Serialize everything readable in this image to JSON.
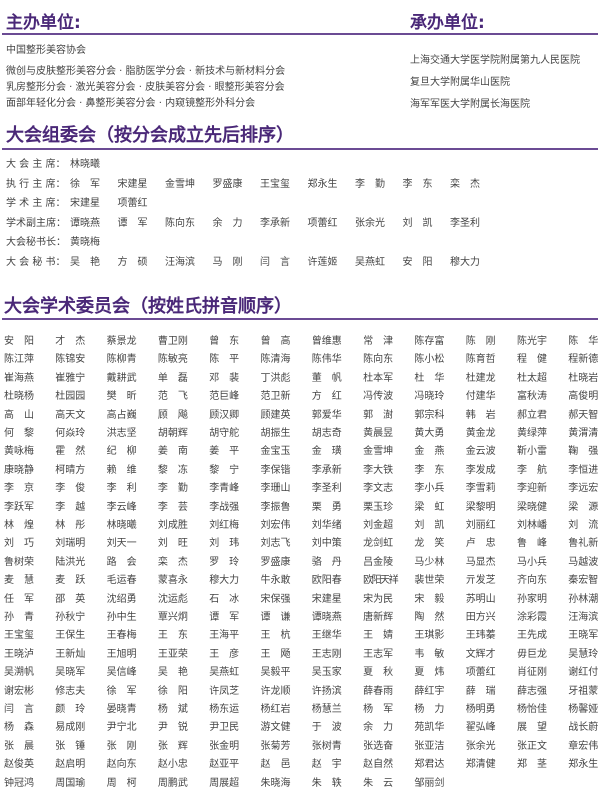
{
  "organizers": {
    "title": "主办单位:",
    "items": [
      "中国整形美容协会",
      "微创与皮肤整形美容分会 · 脂肪医学分会 · 新技术与新材料分会",
      "乳房整形分会 · 激光美容分会 ·  皮肤美容分会 · 眼整形美容分会",
      "面部年轻化分会 · 鼻整形美容分会 · 内窥镜整形外科分会"
    ]
  },
  "hosts": {
    "title": "承办单位:",
    "items": [
      "上海交通大学医学院附属第九人民医院",
      "复旦大学附属华山医院",
      "海军军医大学附属长海医院"
    ]
  },
  "organizing_committee": {
    "title": "大会组委会（按分会成立先后排序）",
    "rows": [
      {
        "label": "大 会 主 席：",
        "names": [
          "林晓曦"
        ]
      },
      {
        "label": "执 行 主 席：",
        "names": [
          "徐　军",
          "宋建星",
          "金雪坤",
          "罗盛康",
          "王宝玺",
          "郑永生",
          "李　勤",
          "李　东",
          "栾　杰"
        ]
      },
      {
        "label": "学 术 主 席：",
        "names": [
          "宋建星",
          "项蕾红"
        ]
      },
      {
        "label": "学术副主席：",
        "names": [
          "谭晓燕",
          "谭　军",
          "陈向东",
          "余　力",
          "李承新",
          "项蕾红",
          "张余光",
          "刘　凯",
          "李圣利"
        ]
      },
      {
        "label": "大会秘书长：",
        "names": [
          "黄晓梅"
        ]
      },
      {
        "label": "大 会 秘 书：",
        "names": [
          "吴　艳",
          "方　硕",
          "汪海滨",
          "马　刚",
          "闫　言",
          "许莲姬",
          "吴燕虹",
          "安　阳",
          "穆大力"
        ]
      }
    ]
  },
  "academic_committee": {
    "title": "大会学术委员会（按姓氏拼音顺序）",
    "rows": [
      [
        "安　阳",
        "才　杰",
        "蔡景龙",
        "曹卫刚",
        "曾　东",
        "曾　高",
        "曾维惠",
        "常　津",
        "陈存富",
        "陈　刚",
        "陈光宇",
        "陈　华"
      ],
      [
        "陈江萍",
        "陈锦安",
        "陈柳青",
        "陈敏亮",
        "陈　平",
        "陈清海",
        "陈伟华",
        "陈向东",
        "陈小松",
        "陈育哲",
        "程　健",
        "程新德"
      ],
      [
        "崔海燕",
        "崔雅宁",
        "戴耕武",
        "单　磊",
        "邓　裴",
        "丁洪彪",
        "董　帆",
        "杜本军",
        "杜　华",
        "杜建龙",
        "杜太超",
        "杜晓岩"
      ],
      [
        "杜晓杨",
        "杜园园",
        "樊　昕",
        "范　飞",
        "范巨峰",
        "范卫新",
        "方　红",
        "冯传波",
        "冯晓玲",
        "付建华",
        "富秋涛",
        "高俊明"
      ],
      [
        "高　山",
        "高天文",
        "高占巍",
        "顾　飚",
        "顾汉卿",
        "顾建英",
        "郭爱华",
        "郭　澍",
        "郭宗科",
        "韩　岩",
        "郝立君",
        "郝天智"
      ],
      [
        "何　黎",
        "何焱玲",
        "洪志坚",
        "胡朝辉",
        "胡守舵",
        "胡振生",
        "胡志奇",
        "黄晨昱",
        "黄大勇",
        "黄金龙",
        "黄绿萍",
        "黄渭清"
      ],
      [
        "黄咏梅",
        "霍　然",
        "纪　柳",
        "姜　南",
        "姜　平",
        "金宝玉",
        "金　璜",
        "金雪坤",
        "金　燕",
        "金云波",
        "靳小雷",
        "鞠　强"
      ],
      [
        "康晓静",
        "柯晴方",
        "赖　维",
        "黎　冻",
        "黎　宁",
        "李保锴",
        "李承新",
        "李大铁",
        "李　东",
        "李发成",
        "李　航",
        "李恒进"
      ],
      [
        "李　京",
        "李　俊",
        "李　利",
        "李　勤",
        "李青峰",
        "李珊山",
        "李圣利",
        "李文志",
        "李小兵",
        "李雪莉",
        "李迎新",
        "李远宏"
      ],
      [
        "李跃军",
        "李　越",
        "李云峰",
        "李　芸",
        "李战强",
        "李振鲁",
        "栗　勇",
        "栗玉珍",
        "梁　虹",
        "梁黎明",
        "梁晓健",
        "梁　源"
      ],
      [
        "林　煌",
        "林　彤",
        "林晓曦",
        "刘成胜",
        "刘红梅",
        "刘宏伟",
        "刘华绪",
        "刘金超",
        "刘　凯",
        "刘丽红",
        "刘林嶓",
        "刘　流"
      ],
      [
        "刘　巧",
        "刘瑞明",
        "刘天一",
        "刘　旺",
        "刘　玮",
        "刘志飞",
        "刘中策",
        "龙剑虹",
        "龙　笑",
        "卢　忠",
        "鲁　峰",
        "鲁礼新"
      ],
      [
        "鲁树荣",
        "陆洪光",
        "路　会",
        "栾　杰",
        "罗　玲",
        "罗盛康",
        "骆　丹",
        "吕金陵",
        "马少林",
        "马显杰",
        "马小兵",
        "马越波"
      ],
      [
        "麦　慧",
        "麦　跃",
        "毛运春",
        "蒙喜永",
        "穆大力",
        "牛永敢",
        "欧阳春",
        "欧阳天祥",
        "裴世荣",
        "亓发芝",
        "齐向东",
        "秦宏智"
      ],
      [
        "任　军",
        "邵　英",
        "沈绍勇",
        "沈运彪",
        "石　冰",
        "宋保强",
        "宋建星",
        "宋为民",
        "宋　毅",
        "苏明山",
        "孙家明",
        "孙林潮"
      ],
      [
        "孙　青",
        "孙秋宁",
        "孙中生",
        "覃兴炯",
        "谭　军",
        "谭　谦",
        "谭晓燕",
        "唐新辉",
        "陶　然",
        "田方兴",
        "涂彩霞",
        "汪海滨"
      ],
      [
        "王宝玺",
        "王保生",
        "王春梅",
        "王　东",
        "王海平",
        "王　杭",
        "王继华",
        "王　婧",
        "王琪影",
        "王玮蓁",
        "王先成",
        "王晓军"
      ],
      [
        "王晓泸",
        "王新灿",
        "王旭明",
        "王亚荣",
        "王　彦",
        "王　飏",
        "王志刚",
        "王志军",
        "韦　敏",
        "文辉才",
        "毋巨龙",
        "吴慧玲"
      ],
      [
        "吴溯帆",
        "吴晓军",
        "吴信峰",
        "吴　艳",
        "吴燕虹",
        "吴毅平",
        "吴玉家",
        "夏　秋",
        "夏　炜",
        "项蕾红",
        "肖征刚",
        "谢红付"
      ],
      [
        "谢宏彬",
        "修志夫",
        "徐　军",
        "徐　阳",
        "许凤芝",
        "许龙顺",
        "许扬滨",
        "薛春雨",
        "薛红宇",
        "薛　瑞",
        "薛志强",
        "牙祖蒙"
      ],
      [
        "闫　言",
        "颜　玲",
        "晏晓青",
        "杨　斌",
        "杨东运",
        "杨红岩",
        "杨慧兰",
        "杨　军",
        "杨　力",
        "杨明勇",
        "杨怡佳",
        "杨馨娅"
      ],
      [
        "杨　森",
        "易成刚",
        "尹宁北",
        "尹　锐",
        "尹卫民",
        "游文健",
        "于　波",
        "余　力",
        "苑凯华",
        "翟弘峰",
        "展　望",
        "战长蔚"
      ],
      [
        "张　晨",
        "张　锤",
        "张　刚",
        "张　辉",
        "张金明",
        "张菊芳",
        "张树青",
        "张选奋",
        "张亚洁",
        "张余光",
        "张正文",
        "章宏伟"
      ],
      [
        "赵俊英",
        "赵启明",
        "赵向东",
        "赵小忠",
        "赵亚平",
        "赵　邑",
        "赵　宇",
        "赵自然",
        "郑君达",
        "郑清健",
        "郑　茎",
        "郑永生"
      ],
      [
        "钟冠鸿",
        "周国瑜",
        "周　柯",
        "周鹏武",
        "周展超",
        "朱晓海",
        "朱　轶",
        "朱　云",
        "邹丽剑"
      ]
    ]
  },
  "colors": {
    "heading": "#4a2878",
    "rule": "#6b4b94",
    "text": "#444444"
  }
}
